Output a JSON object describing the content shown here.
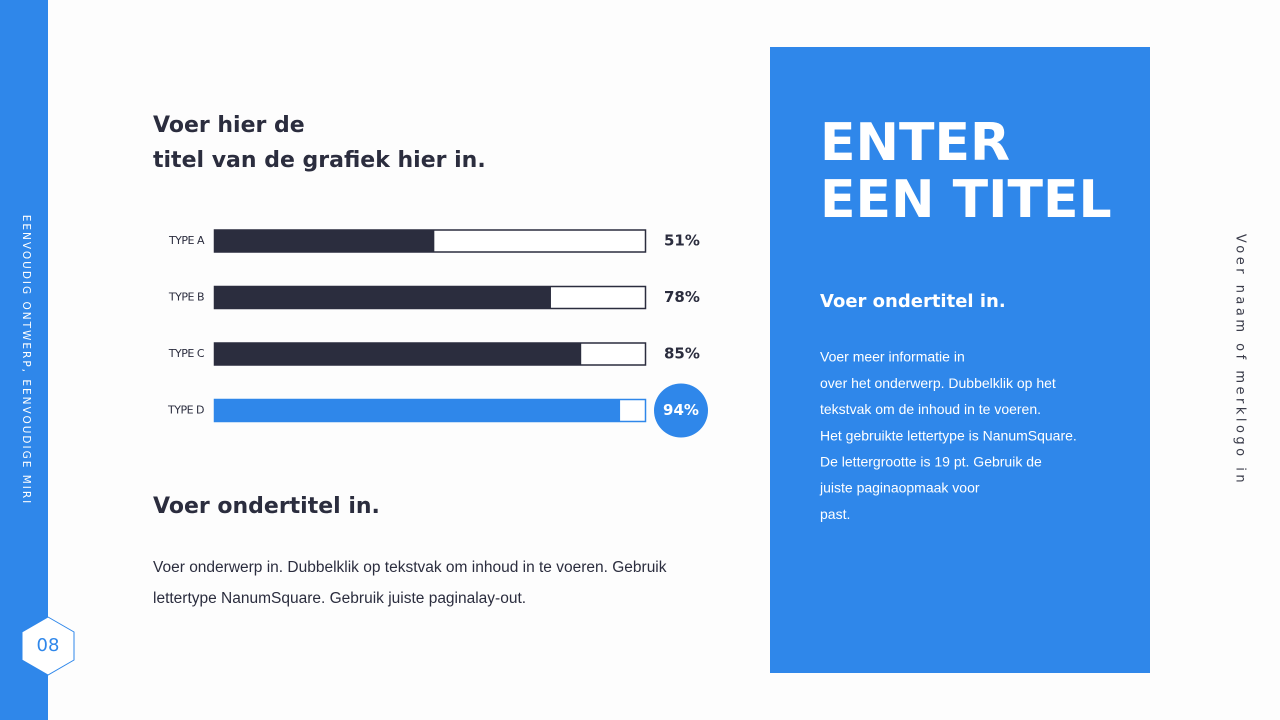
{
  "sidebar": {
    "text": "EENVOUDIG ONTWERP, EENVOUDIGE MIRI",
    "page_number": "08"
  },
  "chart_data": {
    "type": "bar",
    "orientation": "horizontal",
    "title": [
      "Voer hier de",
      "titel van de grafiek hier in."
    ],
    "categories": [
      "TYPE A",
      "TYPE B",
      "TYPE C",
      "TYPE D"
    ],
    "values": [
      51,
      78,
      85,
      94
    ],
    "value_labels": [
      "51%",
      "78%",
      "85%",
      "94%"
    ],
    "colors": [
      "#2b2d3e",
      "#2b2d3e",
      "#2b2d3e",
      "#2f87ea"
    ],
    "highlight_color": "#2f87ea",
    "xlim": [
      0,
      100
    ]
  },
  "left_text": {
    "subtitle": "Voer ondertitel in.",
    "body": [
      "Voer onderwerp in. Dubbelklik op tekstvak om inhoud in te voeren. Gebruik",
      "lettertype NanumSquare. Gebruik juiste paginalay-out."
    ]
  },
  "panel": {
    "title": [
      "ENTER",
      "EEN TITEL"
    ],
    "subtitle": "Voer ondertitel in.",
    "body": [
      "Voer meer informatie in",
      "over het onderwerp. Dubbelklik op het",
      "tekstvak om de inhoud in te voeren.",
      "Het gebruikte lettertype is NanumSquare.",
      "De lettergrootte is 19 pt. Gebruik de",
      "juiste paginaopmaak voor",
      "past."
    ]
  },
  "side_note": "Voer naam of merklogo in"
}
